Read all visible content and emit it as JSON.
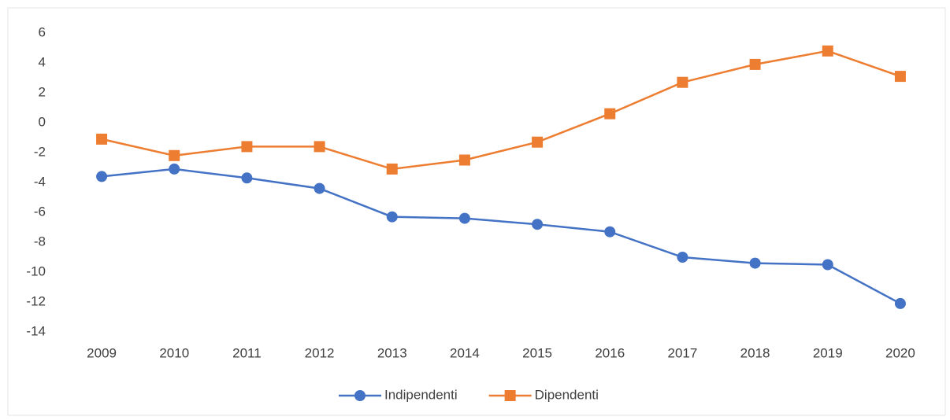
{
  "chart_data": {
    "type": "line",
    "categories": [
      "2009",
      "2010",
      "2011",
      "2012",
      "2013",
      "2014",
      "2015",
      "2016",
      "2017",
      "2018",
      "2019",
      "2020"
    ],
    "series": [
      {
        "name": "Indipendenti",
        "color": "#4472c4",
        "marker": "circle",
        "values": [
          -3.6,
          -3.1,
          -3.7,
          -4.4,
          -6.3,
          -6.4,
          -6.8,
          -7.3,
          -9.0,
          -9.4,
          -9.5,
          -12.1
        ]
      },
      {
        "name": "Dipendenti",
        "color": "#ed7d31",
        "marker": "square",
        "values": [
          -1.1,
          -2.2,
          -1.6,
          -1.6,
          -3.1,
          -2.5,
          -1.3,
          0.6,
          2.7,
          3.9,
          4.8,
          3.1
        ]
      }
    ],
    "ylim": [
      -14,
      6
    ],
    "yticks": [
      -14,
      -12,
      -10,
      -8,
      -6,
      -4,
      -2,
      0,
      2,
      4,
      6
    ],
    "grid": false,
    "legend": "bottom"
  }
}
